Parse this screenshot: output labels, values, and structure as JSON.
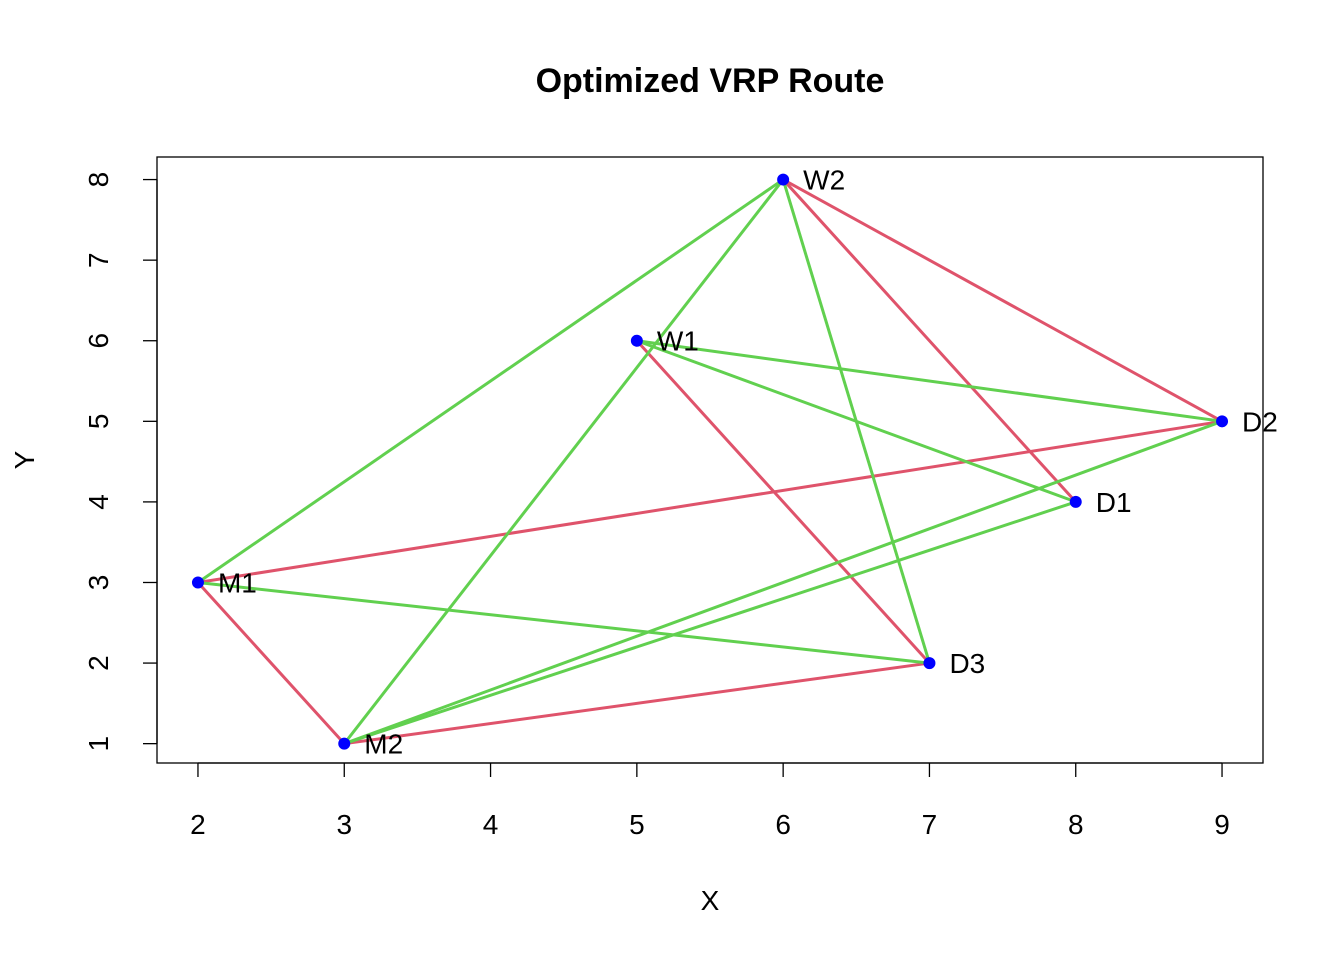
{
  "chart_data": {
    "type": "scatter",
    "title": "Optimized VRP Route",
    "xlabel": "X",
    "ylabel": "Y",
    "xlim": [
      1.72,
      9.28
    ],
    "ylim": [
      0.76,
      8.28
    ],
    "xticks": [
      2,
      3,
      4,
      5,
      6,
      7,
      8,
      9
    ],
    "yticks": [
      1,
      2,
      3,
      4,
      5,
      6,
      7,
      8
    ],
    "grid": false,
    "point_color": "#0000FF",
    "points": [
      {
        "label": "W1",
        "x": 5,
        "y": 6
      },
      {
        "label": "W2",
        "x": 6,
        "y": 8
      },
      {
        "label": "M1",
        "x": 2,
        "y": 3
      },
      {
        "label": "M2",
        "x": 3,
        "y": 1
      },
      {
        "label": "D1",
        "x": 8,
        "y": 4
      },
      {
        "label": "D2",
        "x": 9,
        "y": 5
      },
      {
        "label": "D3",
        "x": 7,
        "y": 2
      }
    ],
    "series": [
      {
        "color": "#DF536B",
        "segments": [
          [
            "W2",
            "D2"
          ],
          [
            "W2",
            "D1"
          ],
          [
            "W1",
            "D3"
          ],
          [
            "M1",
            "D2"
          ],
          [
            "M1",
            "M2"
          ],
          [
            "M2",
            "D3"
          ]
        ]
      },
      {
        "color": "#61D04F",
        "segments": [
          [
            "M1",
            "W2"
          ],
          [
            "M2",
            "W2"
          ],
          [
            "W2",
            "D3"
          ],
          [
            "W1",
            "D2"
          ],
          [
            "W1",
            "D1"
          ],
          [
            "M1",
            "D3"
          ],
          [
            "M2",
            "D1"
          ],
          [
            "M2",
            "D2"
          ]
        ]
      }
    ]
  }
}
